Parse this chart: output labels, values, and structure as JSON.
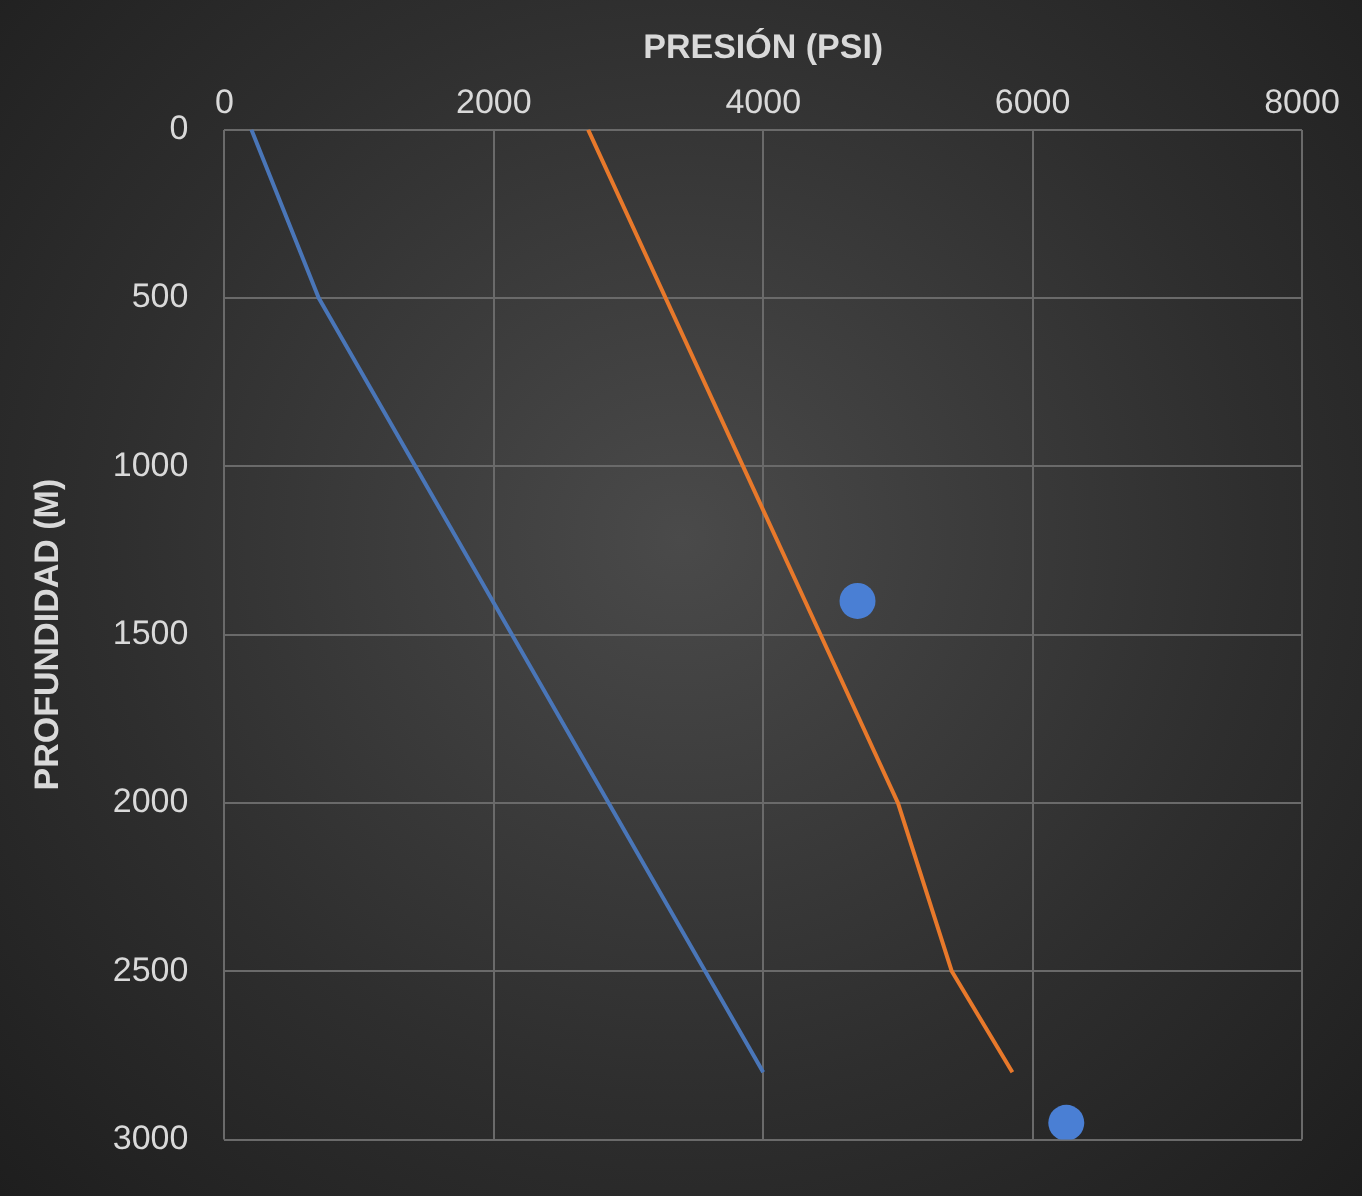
{
  "chart_data": {
    "type": "line",
    "xlabel": "PRESIÓN (PSI)",
    "ylabel": "PROFUNDIDAD (M)",
    "xlim": [
      0,
      8000
    ],
    "xticks": [
      0,
      2000,
      4000,
      6000,
      8000
    ],
    "ylim": [
      3000,
      0
    ],
    "yticks": [
      0,
      500,
      1000,
      1500,
      2000,
      2500,
      3000
    ],
    "grid": true,
    "legend": false,
    "marker": "none",
    "series": [
      {
        "color": "#4a76b8",
        "x": [
          200,
          700,
          4000
        ],
        "values": [
          0,
          500,
          2800
        ]
      },
      {
        "color": "#e8792b",
        "x": [
          2700,
          5000,
          5400,
          5850
        ],
        "values": [
          0,
          2000,
          2500,
          2800
        ]
      },
      {
        "type": "scatter",
        "color": "#4a7fd4",
        "marker": "circle",
        "x": [
          4700,
          6250
        ],
        "values": [
          1400,
          2950
        ]
      }
    ]
  }
}
